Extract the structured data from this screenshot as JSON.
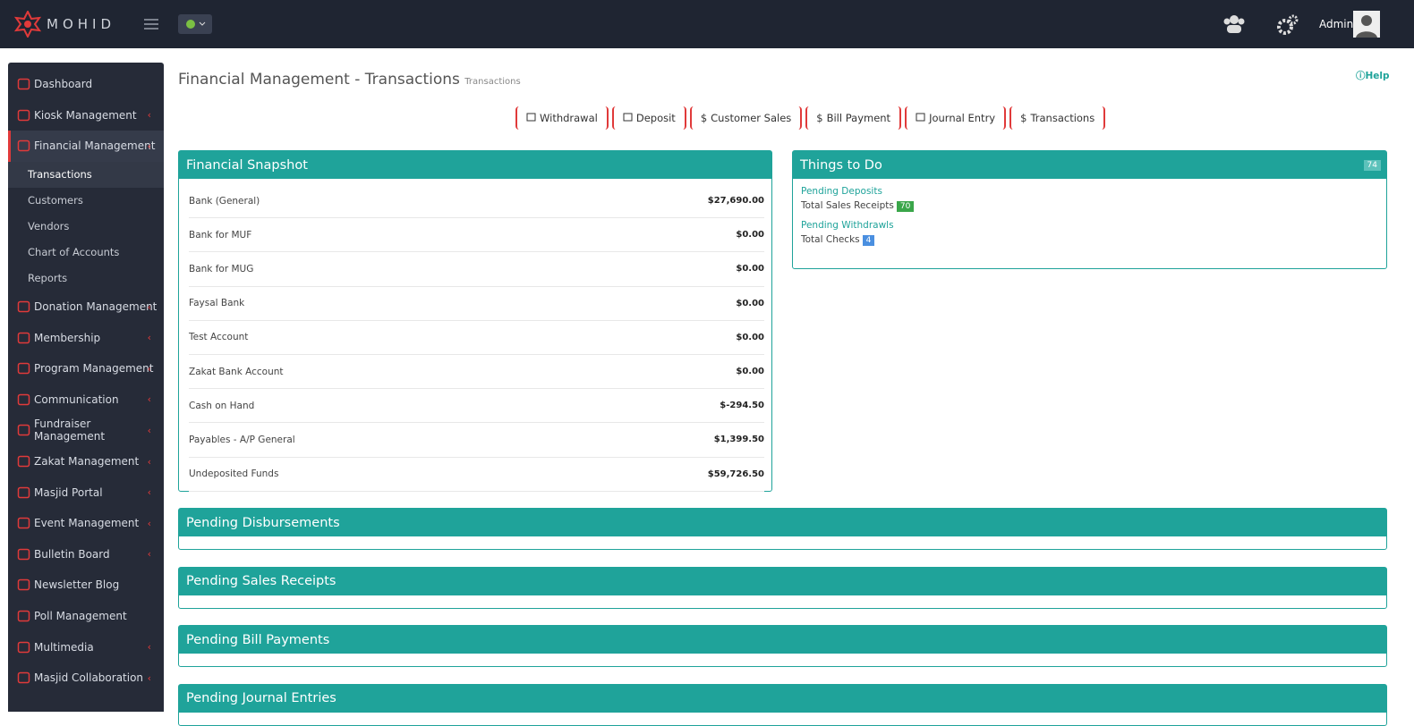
{
  "header": {
    "brand": "MOHID",
    "user": "Admin"
  },
  "sidebar": {
    "items": [
      {
        "label": "Dashboard",
        "expandable": false
      },
      {
        "label": "Kiosk Management",
        "expandable": true
      },
      {
        "label": "Financial Management",
        "expandable": true,
        "active": true,
        "children": [
          "Transactions",
          "Customers",
          "Vendors",
          "Chart of Accounts",
          "Reports"
        ]
      },
      {
        "label": "Donation Management",
        "expandable": true
      },
      {
        "label": "Membership",
        "expandable": true
      },
      {
        "label": "Program Management",
        "expandable": true
      },
      {
        "label": "Communication",
        "expandable": true
      },
      {
        "label": "Fundraiser Management",
        "expandable": true
      },
      {
        "label": "Zakat Management",
        "expandable": true
      },
      {
        "label": "Masjid Portal",
        "expandable": true
      },
      {
        "label": "Event Management",
        "expandable": true
      },
      {
        "label": "Bulletin Board",
        "expandable": true
      },
      {
        "label": "Newsletter Blog",
        "expandable": false
      },
      {
        "label": "Poll Management",
        "expandable": false
      },
      {
        "label": "Multimedia",
        "expandable": true
      },
      {
        "label": "Masjid Collaboration",
        "expandable": true
      }
    ]
  },
  "page": {
    "title": "Financial Management - Transactions",
    "subtitle": "Transactions",
    "help": "Help"
  },
  "actions": [
    {
      "label": "Withdrawal"
    },
    {
      "label": "Deposit"
    },
    {
      "icon": "$",
      "label": "Customer Sales"
    },
    {
      "icon": "$",
      "label": "Bill Payment"
    },
    {
      "label": "Journal Entry"
    },
    {
      "icon": "$",
      "label": "Transactions"
    }
  ],
  "snapshot": {
    "title": "Financial Snapshot",
    "rows": [
      [
        "Bank (General)",
        "$27,690.00"
      ],
      [
        "Bank for MUF",
        "$0.00"
      ],
      [
        "Bank for MUG",
        "$0.00"
      ],
      [
        "Faysal Bank",
        "$0.00"
      ],
      [
        "Test Account",
        "$0.00"
      ],
      [
        "Zakat Bank Account",
        "$0.00"
      ],
      [
        "Cash on Hand",
        "$-294.50"
      ],
      [
        "Payables - A/P General",
        "$1,399.50"
      ],
      [
        "Undeposited Funds",
        "$59,726.50"
      ]
    ]
  },
  "todo": {
    "title": "Things to Do",
    "badge": 74,
    "groups": [
      {
        "heading": "Pending Deposits",
        "label": "Total Sales Receipts",
        "count": 70,
        "color": "#3aa64a"
      },
      {
        "heading": "Pending Withdrawls",
        "label": "Total Checks",
        "count": 4,
        "color": "#4a8fe0"
      }
    ]
  },
  "panels": [
    "Pending Disbursements",
    "Pending Sales Receipts",
    "Pending Bill Payments",
    "Pending Journal Entries"
  ]
}
